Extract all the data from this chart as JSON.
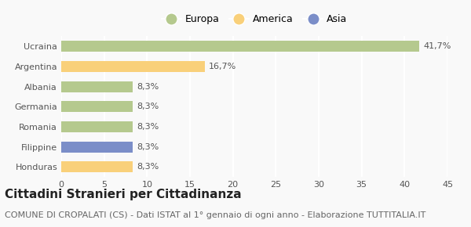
{
  "categories": [
    "Ucraina",
    "Argentina",
    "Albania",
    "Germania",
    "Romania",
    "Filippine",
    "Honduras"
  ],
  "values": [
    41.7,
    16.7,
    8.3,
    8.3,
    8.3,
    8.3,
    8.3
  ],
  "labels": [
    "41,7%",
    "16,7%",
    "8,3%",
    "8,3%",
    "8,3%",
    "8,3%",
    "8,3%"
  ],
  "colors": [
    "#b5c98e",
    "#f9d07a",
    "#b5c98e",
    "#b5c98e",
    "#b5c98e",
    "#7b8ec8",
    "#f9d07a"
  ],
  "legend_labels": [
    "Europa",
    "America",
    "Asia"
  ],
  "legend_colors": [
    "#b5c98e",
    "#f9d07a",
    "#7b8ec8"
  ],
  "xlim": [
    0,
    45
  ],
  "xticks": [
    0,
    5,
    10,
    15,
    20,
    25,
    30,
    35,
    40,
    45
  ],
  "title": "Cittadini Stranieri per Cittadinanza",
  "subtitle": "COMUNE DI CROPALATI (CS) - Dati ISTAT al 1° gennaio di ogni anno - Elaborazione TUTTITALIA.IT",
  "background_color": "#f9f9f9",
  "grid_color": "#ffffff",
  "bar_height": 0.55,
  "title_fontsize": 11,
  "subtitle_fontsize": 8,
  "label_fontsize": 8,
  "tick_fontsize": 8,
  "legend_fontsize": 9
}
